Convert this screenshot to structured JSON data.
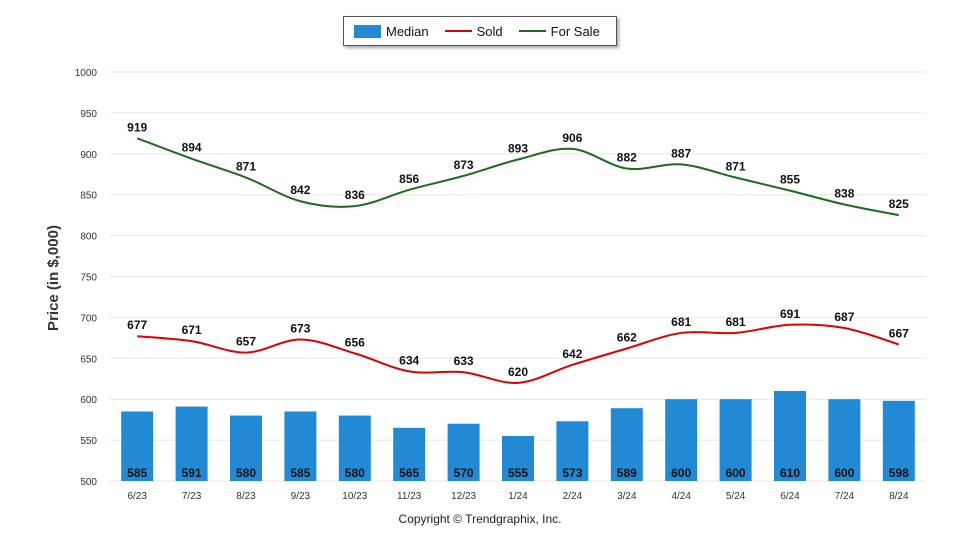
{
  "chart_data": {
    "type": "bar+line",
    "categories": [
      "6/23",
      "7/23",
      "8/23",
      "9/23",
      "10/23",
      "11/23",
      "12/23",
      "1/24",
      "2/24",
      "3/24",
      "4/24",
      "5/24",
      "6/24",
      "7/24",
      "8/24"
    ],
    "series": [
      {
        "name": "Median",
        "kind": "bar",
        "color": "#2289d4",
        "values": [
          585,
          591,
          580,
          585,
          580,
          565,
          570,
          555,
          573,
          589,
          600,
          600,
          610,
          600,
          598
        ]
      },
      {
        "name": "Sold",
        "kind": "line",
        "color": "#e00000",
        "values": [
          677,
          671,
          657,
          673,
          656,
          634,
          633,
          620,
          642,
          662,
          681,
          681,
          691,
          687,
          667
        ]
      },
      {
        "name": "For Sale",
        "kind": "line",
        "color": "#1a6e1a",
        "values": [
          919,
          894,
          871,
          842,
          836,
          856,
          873,
          893,
          906,
          882,
          887,
          871,
          855,
          838,
          825
        ]
      }
    ],
    "ylabel": "Price (in $,000)",
    "ylim": [
      500,
      1000
    ],
    "yticks": [
      500,
      550,
      600,
      650,
      700,
      750,
      800,
      850,
      900,
      950,
      1000
    ],
    "grid": true,
    "legend": "top-center"
  },
  "copyright": "Copyright © Trendgraphix, Inc."
}
